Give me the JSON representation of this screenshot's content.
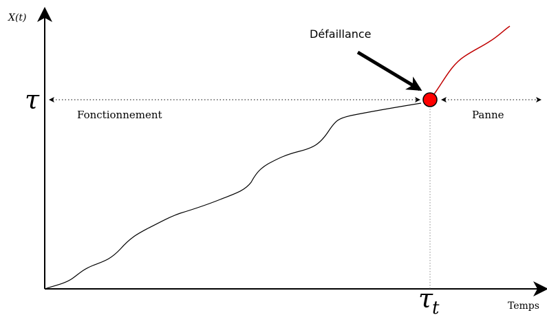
{
  "axes": {
    "y_label": "X(t)",
    "x_label": "Temps"
  },
  "threshold": {
    "symbol": "τ"
  },
  "failure_time": {
    "symbol": "τ",
    "subscript": "t"
  },
  "regions": {
    "left": "Fonctionnement",
    "right": "Panne"
  },
  "event": "Défaillance"
}
